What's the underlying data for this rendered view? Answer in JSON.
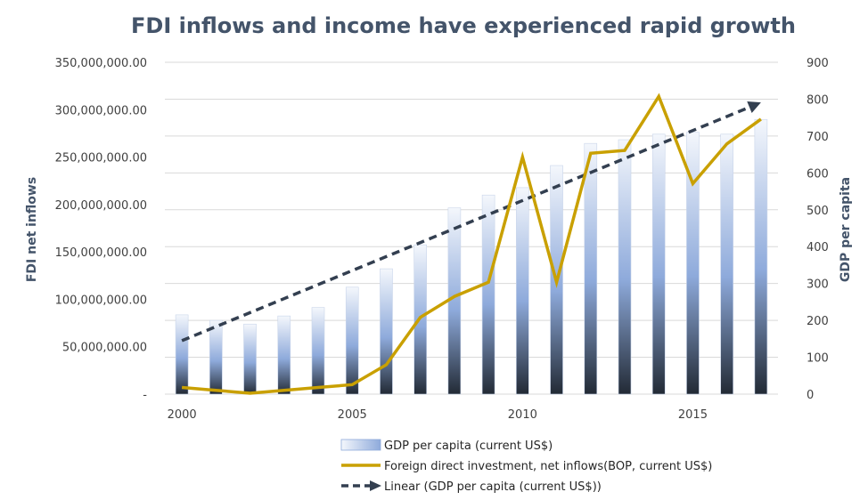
{
  "chart_data": {
    "type": "bar",
    "title": "FDI inflows and income have experienced rapid growth",
    "x": [
      2000,
      2001,
      2002,
      2003,
      2004,
      2005,
      2006,
      2007,
      2008,
      2009,
      2010,
      2011,
      2012,
      2013,
      2014,
      2015,
      2016,
      2017
    ],
    "x_tick_labels": [
      "2000",
      "2005",
      "2010",
      "2015"
    ],
    "y_left": {
      "label": "FDI net inflows",
      "range": [
        0,
        350000000
      ],
      "tick_labels": [
        "-",
        "50,000,000.00",
        "100,000,000.00",
        "150,000,000.00",
        "200,000,000.00",
        "250,000,000.00",
        "300,000,000.00",
        "350,000,000.00"
      ]
    },
    "y_right": {
      "label": "GDP per capita",
      "range": [
        0,
        900
      ],
      "tick_labels": [
        "0",
        "100",
        "200",
        "300",
        "400",
        "500",
        "600",
        "700",
        "800",
        "900"
      ]
    },
    "series": [
      {
        "name": "GDP per capita (current US$)",
        "type": "bar",
        "axis": "right",
        "values": [
          215,
          200,
          190,
          212,
          235,
          290,
          340,
          405,
          505,
          540,
          560,
          620,
          680,
          690,
          705,
          710,
          705,
          745
        ]
      },
      {
        "name": "Foreign direct investment, net inflows(BOP, current US$)",
        "type": "line",
        "axis": "left",
        "color": "#c9a000",
        "values": [
          7000000,
          4000000,
          1000000,
          4000000,
          7000000,
          10000000,
          31000000,
          81000000,
          103000000,
          118000000,
          250000000,
          118000000,
          254000000,
          257000000,
          314000000,
          222000000,
          264000000,
          290000000
        ]
      },
      {
        "name": "Linear (GDP per capita (current US$))",
        "type": "trendline",
        "axis": "right",
        "color": "#333f50",
        "values": [
          145,
          183,
          221,
          259,
          297,
          335,
          373,
          411,
          449,
          487,
          525,
          563,
          601,
          639,
          677,
          715,
          753,
          791
        ]
      }
    ],
    "legend_position": "bottom",
    "grid": true
  },
  "colors": {
    "title": "#44546a",
    "fdi_line": "#c9a000",
    "trend_line": "#333f50",
    "grid": "#d9d9d9"
  }
}
